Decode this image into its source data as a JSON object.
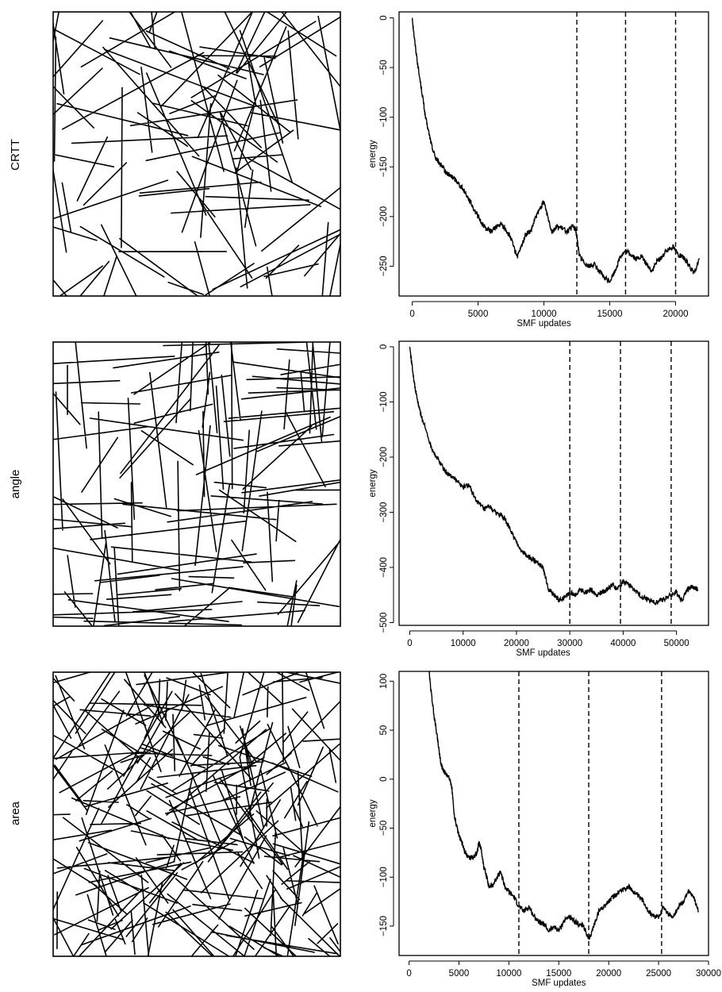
{
  "row_labels": [
    "CRTT",
    "angle",
    "area"
  ],
  "chart_data": [
    {
      "type": "line",
      "xlabel": "SMF updates",
      "ylabel": "energy",
      "xlim": [
        -1000,
        22500
      ],
      "ylim": [
        -280,
        6
      ],
      "xticks": [
        0,
        5000,
        10000,
        15000,
        20000
      ],
      "yticks": [
        0,
        -50,
        -100,
        -150,
        -200,
        -250
      ],
      "vlines": [
        12500,
        16200,
        20000
      ],
      "series": [
        {
          "x": [
            0,
            200,
            500,
            800,
            1000,
            1300,
            1500,
            1800,
            2000,
            2300,
            2500,
            2800,
            3000,
            3300,
            3600,
            4000,
            4400,
            4800,
            5200,
            5600,
            6000,
            6400,
            6800,
            7200,
            7500,
            7800,
            8000,
            8300,
            8600,
            9000,
            9400,
            9800,
            10000,
            10300,
            10600,
            11000,
            11400,
            11800,
            12200,
            12400,
            12500,
            12700,
            13000,
            13400,
            13800,
            14200,
            14600,
            15000,
            15400,
            15800,
            16200,
            16600,
            17000,
            17400,
            17800,
            18200,
            18600,
            19000,
            19400,
            19800,
            20200,
            20600,
            21000,
            21400,
            21800
          ],
          "y": [
            0,
            -25,
            -55,
            -80,
            -100,
            -118,
            -130,
            -142,
            -145,
            -150,
            -155,
            -158,
            -160,
            -163,
            -168,
            -175,
            -185,
            -195,
            -205,
            -212,
            -215,
            -210,
            -208,
            -215,
            -222,
            -235,
            -240,
            -230,
            -218,
            -215,
            -200,
            -190,
            -185,
            -200,
            -215,
            -210,
            -212,
            -215,
            -210,
            -213,
            -220,
            -240,
            -245,
            -250,
            -248,
            -255,
            -262,
            -265,
            -255,
            -240,
            -235,
            -238,
            -243,
            -240,
            -248,
            -255,
            -245,
            -240,
            -233,
            -230,
            -238,
            -242,
            -248,
            -258,
            -242
          ]
        }
      ]
    },
    {
      "type": "line",
      "xlabel": "SMF updates",
      "ylabel": "energy",
      "xlim": [
        -2000,
        56000
      ],
      "ylim": [
        -505,
        10
      ],
      "xticks": [
        0,
        10000,
        20000,
        30000,
        40000,
        50000
      ],
      "yticks": [
        0,
        -100,
        -200,
        -300,
        -400,
        -500
      ],
      "vlines": [
        30000,
        39500,
        49000
      ],
      "series": [
        {
          "x": [
            0,
            500,
            1000,
            1500,
            2000,
            3000,
            4000,
            5000,
            6000,
            7000,
            8000,
            9000,
            10000,
            11000,
            12000,
            13000,
            14000,
            15000,
            16000,
            17000,
            18000,
            19000,
            20000,
            21000,
            22000,
            23000,
            24000,
            25000,
            26000,
            27000,
            28000,
            29000,
            30000,
            31000,
            32000,
            33000,
            34000,
            35000,
            36000,
            37000,
            38000,
            39000,
            40000,
            41000,
            42000,
            43000,
            44000,
            45000,
            46000,
            47000,
            48000,
            49000,
            50000,
            51000,
            52000,
            53000,
            54000
          ],
          "y": [
            0,
            -40,
            -75,
            -100,
            -120,
            -150,
            -180,
            -200,
            -215,
            -230,
            -235,
            -245,
            -255,
            -250,
            -270,
            -285,
            -295,
            -290,
            -300,
            -305,
            -315,
            -335,
            -355,
            -370,
            -380,
            -385,
            -390,
            -400,
            -440,
            -450,
            -460,
            -455,
            -445,
            -450,
            -440,
            -445,
            -440,
            -450,
            -445,
            -440,
            -430,
            -440,
            -425,
            -430,
            -440,
            -450,
            -455,
            -460,
            -465,
            -460,
            -455,
            -450,
            -445,
            -460,
            -440,
            -435,
            -440
          ]
        }
      ]
    },
    {
      "type": "line",
      "xlabel": "SMF updates",
      "ylabel": "energy",
      "xlim": [
        -1000,
        30000
      ],
      "ylim": [
        -180,
        110
      ],
      "xticks": [
        0,
        5000,
        10000,
        15000,
        20000,
        25000,
        30000
      ],
      "yticks": [
        100,
        50,
        0,
        -50,
        -100,
        -150
      ],
      "vlines": [
        11000,
        18000,
        25300
      ],
      "series": [
        {
          "x": [
            2000,
            2200,
            2500,
            2800,
            3000,
            3200,
            3500,
            3700,
            4000,
            4300,
            4500,
            4800,
            5000,
            5300,
            5600,
            6000,
            6400,
            6800,
            7000,
            7200,
            7500,
            7800,
            8000,
            8400,
            8800,
            9200,
            9600,
            10000,
            10500,
            11000,
            11500,
            12000,
            12500,
            13000,
            13500,
            14000,
            14500,
            15000,
            15500,
            16000,
            16500,
            17000,
            17500,
            18000,
            18500,
            19000,
            19500,
            20000,
            20500,
            21000,
            21500,
            22000,
            22500,
            23000,
            23500,
            24000,
            24500,
            25000,
            25500,
            26000,
            26500,
            27000,
            27500,
            28000,
            28500,
            29000
          ],
          "y": [
            110,
            90,
            65,
            45,
            30,
            15,
            8,
            5,
            3,
            -10,
            -35,
            -50,
            -58,
            -65,
            -75,
            -80,
            -80,
            -75,
            -65,
            -70,
            -90,
            -100,
            -110,
            -108,
            -100,
            -95,
            -110,
            -115,
            -120,
            -130,
            -135,
            -130,
            -140,
            -145,
            -148,
            -155,
            -150,
            -155,
            -145,
            -140,
            -145,
            -148,
            -150,
            -165,
            -150,
            -135,
            -130,
            -125,
            -120,
            -115,
            -112,
            -110,
            -115,
            -120,
            -125,
            -135,
            -140,
            -140,
            -130,
            -138,
            -140,
            -130,
            -125,
            -115,
            -120,
            -135
          ]
        }
      ]
    }
  ]
}
